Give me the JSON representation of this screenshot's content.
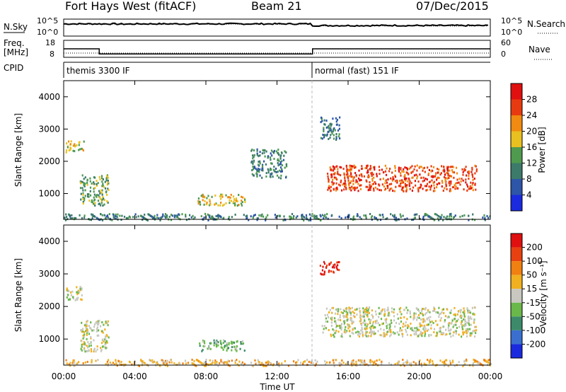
{
  "header": {
    "title": "Fort Hays West (fitACF)",
    "beam": "Beam 21",
    "date": "07/Dec/2015"
  },
  "top_panels": {
    "nsky_label": "N.Sky",
    "nsky_ticks": [
      "10^5",
      "10^0"
    ],
    "nsearch_label": "N.Search",
    "nsearch_ticks": [
      "10^5",
      "10^0"
    ],
    "freq_label_1": "Freq.",
    "freq_label_2": "[MHz]",
    "freq_ticks": [
      "18",
      "8"
    ],
    "nave_label": "Nave",
    "nave_ticks": [
      "60",
      "0"
    ],
    "cpid_label": "CPID",
    "cpid_segments": [
      {
        "label": "themis 3300 IF",
        "start_hour": 0,
        "end_hour": 14
      },
      {
        "label": "normal (fast) 151 IF",
        "start_hour": 14,
        "end_hour": 24
      }
    ]
  },
  "chart_data": [
    {
      "type": "line",
      "name": "noise",
      "x_hours": [
        0,
        1,
        2,
        3,
        4,
        5,
        6,
        7,
        8,
        9,
        10,
        11,
        12,
        13,
        14,
        15,
        16,
        17,
        18,
        19,
        20,
        21,
        22,
        23,
        24
      ],
      "nsky_level": [
        0.72,
        0.72,
        0.72,
        0.71,
        0.72,
        0.72,
        0.72,
        0.72,
        0.72,
        0.72,
        0.72,
        0.72,
        0.72,
        0.72,
        0.62,
        0.62,
        0.62,
        0.62,
        0.63,
        0.62,
        0.62,
        0.62,
        0.62,
        0.62,
        0.62
      ],
      "nsearch_level": [
        0.7,
        0.7,
        0.7,
        0.69,
        0.7,
        0.7,
        0.7,
        0.7,
        0.7,
        0.7,
        0.7,
        0.7,
        0.7,
        0.7,
        0.6,
        0.6,
        0.6,
        0.6,
        0.6,
        0.6,
        0.6,
        0.6,
        0.6,
        0.6,
        0.6
      ]
    },
    {
      "type": "line",
      "name": "frequency",
      "steps": [
        {
          "start_hour": 0,
          "end_hour": 2,
          "freq_mhz": 13
        },
        {
          "start_hour": 2,
          "end_hour": 14,
          "freq_mhz": 10
        },
        {
          "start_hour": 14,
          "end_hour": 24,
          "freq_mhz": 13
        }
      ],
      "nave_level": 0.25
    },
    {
      "type": "heatmap",
      "name": "power",
      "ylabel": "Slant Range [km]",
      "xlim_hours": [
        0,
        24
      ],
      "ylim_km": [
        200,
        4500
      ],
      "yticks": [
        1000,
        2000,
        3000,
        4000
      ],
      "colorbar_label": "Power [dB]",
      "colorbar_ticks": [
        "4",
        "8",
        "12",
        "16",
        "20",
        "24",
        "28"
      ],
      "colorbar_colors": [
        "#1a2adf",
        "#2d55a8",
        "#3c7a6a",
        "#4f9a4f",
        "#e8c020",
        "#f08a10",
        "#e83a10",
        "#e01010"
      ],
      "blobs": [
        {
          "t0": 0.1,
          "t1": 1.1,
          "r0": 2300,
          "r1": 2650,
          "level": 4
        },
        {
          "t0": 0.9,
          "t1": 2.5,
          "r0": 650,
          "r1": 1600,
          "level": 3
        },
        {
          "t0": 7.5,
          "t1": 10.2,
          "r0": 650,
          "r1": 1000,
          "level": 4
        },
        {
          "t0": 14.8,
          "t1": 23.2,
          "r0": 1100,
          "r1": 1900,
          "level": 6
        },
        {
          "t0": 14.4,
          "t1": 15.5,
          "r0": 2700,
          "r1": 3400,
          "level": 2
        },
        {
          "t0": 10.5,
          "t1": 12.5,
          "r0": 1500,
          "r1": 2400,
          "level": 2
        },
        {
          "t0": 0,
          "t1": 24,
          "r0": 200,
          "r1": 400,
          "level": 2
        }
      ]
    },
    {
      "type": "heatmap",
      "name": "velocity",
      "ylabel": "Slant Range [km]",
      "xlabel": "Time UT",
      "xlim_hours": [
        0,
        24
      ],
      "ylim_km": [
        200,
        4500
      ],
      "yticks": [
        1000,
        2000,
        3000,
        4000
      ],
      "xticks": [
        "00:00",
        "04:00",
        "08:00",
        "12:00",
        "16:00",
        "20:00",
        "00:00"
      ],
      "colorbar_label": "Velocity [m s⁻¹]",
      "colorbar_ticks": [
        "200",
        "100",
        "50",
        "15",
        "-15",
        "-50",
        "-100",
        "-200"
      ],
      "colorbar_colors": [
        "#1a2adf",
        "#3a6fd0",
        "#3c8a6a",
        "#6ab84a",
        "#c8c8c0",
        "#f0b020",
        "#f08010",
        "#e84010",
        "#e01010"
      ],
      "blobs": [
        {
          "t0": 0.1,
          "t1": 1.1,
          "r0": 2200,
          "r1": 2650,
          "level": 4
        },
        {
          "t0": 0.9,
          "t1": 2.5,
          "r0": 650,
          "r1": 1600,
          "level": 4
        },
        {
          "t0": 7.5,
          "t1": 10.2,
          "r0": 650,
          "r1": 1000,
          "level": 3
        },
        {
          "t0": 14.5,
          "t1": 23.2,
          "r0": 1100,
          "r1": 2000,
          "level": 4
        },
        {
          "t0": 14.4,
          "t1": 15.5,
          "r0": 3000,
          "r1": 3400,
          "level": 8
        },
        {
          "t0": 0,
          "t1": 24,
          "r0": 200,
          "r1": 400,
          "level": 5
        }
      ]
    }
  ]
}
